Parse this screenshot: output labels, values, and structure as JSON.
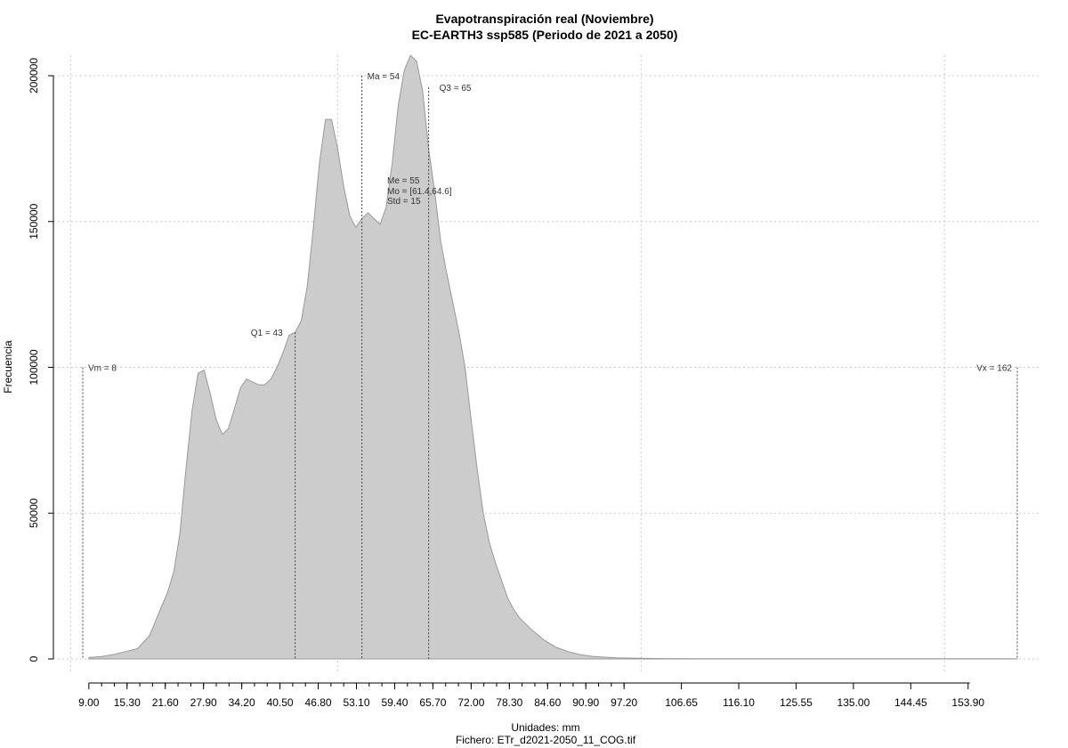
{
  "chart_data": {
    "type": "area",
    "title": "Evapotranspiración real (Noviembre)",
    "subtitle": "EC-EARTH3 ssp585 (Periodo de 2021 a 2050)",
    "xlabel": "Unidades: mm",
    "footer": "Fichero: ETr_d2021-2050_11_COG.tif",
    "ylabel": "Frecuencia",
    "fill_color": "#cccccc",
    "line_color": "#999999",
    "grid": true,
    "xlim": [
      6,
      168
    ],
    "ylim": [
      0,
      210000
    ],
    "x_ticks": [
      9.0,
      15.3,
      21.6,
      27.9,
      34.2,
      40.5,
      46.8,
      53.1,
      59.4,
      65.7,
      72.0,
      78.3,
      84.6,
      90.9,
      97.2,
      106.65,
      116.1,
      125.55,
      135.0,
      144.45,
      153.9
    ],
    "x_tick_labels": [
      "9.00",
      "15.30",
      "21.60",
      "27.90",
      "34.20",
      "40.50",
      "46.80",
      "53.10",
      "59.40",
      "65.70",
      "72.00",
      "78.30",
      "84.60",
      "90.90",
      "97.20",
      "106.65",
      "116.10",
      "125.55",
      "135.00",
      "144.45",
      "153.90"
    ],
    "y_ticks": [
      0,
      50000,
      100000,
      150000,
      200000
    ],
    "y_tick_labels": [
      "0",
      "50000",
      "100000",
      "150000",
      "200000"
    ],
    "x_grid": [
      6,
      50,
      100,
      150
    ],
    "x": [
      9,
      11,
      13,
      15,
      17,
      19,
      20,
      21,
      22,
      23,
      24,
      25,
      26,
      27,
      28,
      29,
      30,
      31,
      32,
      33,
      34,
      35,
      36,
      37,
      38,
      39,
      40,
      41,
      42,
      43,
      44,
      45,
      46,
      47,
      48,
      49,
      50,
      51,
      52,
      53,
      54,
      55,
      56,
      57,
      58,
      59,
      60,
      61,
      62,
      63,
      64,
      65,
      66,
      67,
      68,
      69,
      70,
      71,
      72,
      73,
      74,
      75,
      76,
      77,
      78,
      79,
      80,
      82,
      84,
      86,
      88,
      90,
      92,
      94,
      96,
      98,
      100,
      102,
      104,
      110,
      120,
      140,
      160,
      162
    ],
    "values": [
      500,
      800,
      1500,
      2500,
      3500,
      8000,
      13000,
      18000,
      23000,
      30000,
      43000,
      65000,
      85000,
      98000,
      99000,
      91000,
      82000,
      77000,
      79000,
      86000,
      93000,
      96000,
      95000,
      94000,
      94000,
      96000,
      100000,
      105000,
      111000,
      112000,
      116000,
      128000,
      148000,
      170000,
      185000,
      185000,
      175000,
      162000,
      152000,
      148000,
      151000,
      153000,
      151000,
      149000,
      155000,
      170000,
      190000,
      202000,
      207000,
      205000,
      195000,
      175000,
      160000,
      143000,
      132000,
      122000,
      112000,
      100000,
      82000,
      65000,
      50000,
      40000,
      33000,
      27000,
      21000,
      17000,
      14000,
      10000,
      6500,
      4000,
      2500,
      1500,
      900,
      600,
      400,
      300,
      200,
      150,
      120,
      100,
      80,
      60,
      50,
      40
    ],
    "markers": [
      {
        "x": 8,
        "y_top": 100000,
        "label": "Vm = 8",
        "anchor": "start",
        "dx": 6
      },
      {
        "x": 43,
        "y_top": 112000,
        "label": "Q1 = 43",
        "anchor": "end",
        "dx": -14
      },
      {
        "x": 54,
        "y_top": 200000,
        "label": "Ma = 54",
        "anchor": "start",
        "dx": 6
      },
      {
        "x": 65,
        "y_top": 196000,
        "label": "Q3 = 65",
        "anchor": "start",
        "dx": 12
      },
      {
        "x": 162,
        "y_top": 100000,
        "label": "Vx = 162",
        "anchor": "end",
        "dx": -6
      }
    ],
    "stats": [
      "Me = 55",
      "Mo = [61.4,64.6]",
      "Std = 15"
    ]
  }
}
